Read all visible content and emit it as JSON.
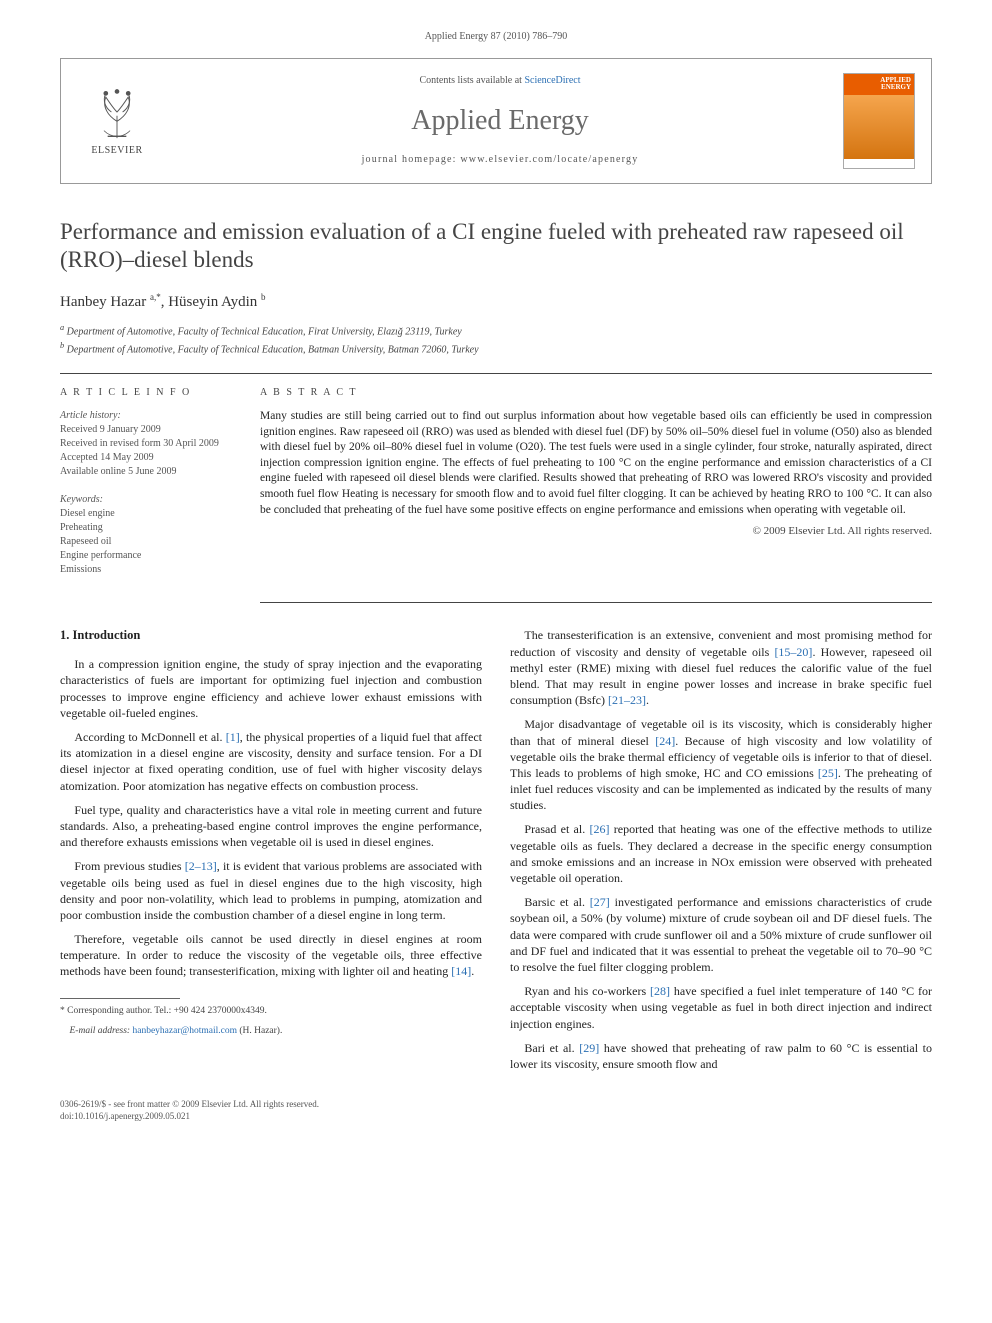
{
  "running_header": "Applied Energy 87 (2010) 786–790",
  "header_box": {
    "contents_line_prefix": "Contents lists available at ",
    "contents_line_link": "ScienceDirect",
    "journal_name": "Applied Energy",
    "homepage_line": "journal homepage: www.elsevier.com/locate/apenergy",
    "elsevier_label": "ELSEVIER",
    "cover_label_line1": "APPLIED",
    "cover_label_line2": "ENERGY"
  },
  "title": "Performance and emission evaluation of a CI engine fueled with preheated raw rapeseed oil (RRO)–diesel blends",
  "authors_html": "Hanbey Hazar <sup>a,*</sup>, Hüseyin Aydin <sup>b</sup>",
  "affiliations": [
    "a Department of Automotive, Faculty of Technical Education, Firat University, Elazığ 23119, Turkey",
    "b Department of Automotive, Faculty of Technical Education, Batman University, Batman 72060, Turkey"
  ],
  "article_info": {
    "header": "A R T I C L E   I N F O",
    "history_label": "Article history:",
    "history": [
      "Received 9 January 2009",
      "Received in revised form 30 April 2009",
      "Accepted 14 May 2009",
      "Available online 5 June 2009"
    ],
    "keywords_label": "Keywords:",
    "keywords": [
      "Diesel engine",
      "Preheating",
      "Rapeseed oil",
      "Engine performance",
      "Emissions"
    ]
  },
  "abstract": {
    "header": "A B S T R A C T",
    "text": "Many studies are still being carried out to find out surplus information about how vegetable based oils can efficiently be used in compression ignition engines. Raw rapeseed oil (RRO) was used as blended with diesel fuel (DF) by 50% oil–50% diesel fuel in volume (O50) also as blended with diesel fuel by 20% oil–80% diesel fuel in volume (O20). The test fuels were used in a single cylinder, four stroke, naturally aspirated, direct injection compression ignition engine. The effects of fuel preheating to 100 °C on the engine performance and emission characteristics of a CI engine fueled with rapeseed oil diesel blends were clarified. Results showed that preheating of RRO was lowered RRO's viscosity and provided smooth fuel flow Heating is necessary for smooth flow and to avoid fuel filter clogging. It can be achieved by heating RRO to 100 °C. It can also be concluded that preheating of the fuel have some positive effects on engine performance and emissions when operating with vegetable oil.",
    "copyright": "© 2009 Elsevier Ltd. All rights reserved."
  },
  "section_heading": "1. Introduction",
  "left_paragraphs": [
    "In a compression ignition engine, the study of spray injection and the evaporating characteristics of fuels are important for optimizing fuel injection and combustion processes to improve engine efficiency and achieve lower exhaust emissions with vegetable oil-fueled engines.",
    "According to McDonnell et al. [1], the physical properties of a liquid fuel that affect its atomization in a diesel engine are viscosity, density and surface tension. For a DI diesel injector at fixed operating condition, use of fuel with higher viscosity delays atomization. Poor atomization has negative effects on combustion process.",
    "Fuel type, quality and characteristics have a vital role in meeting current and future standards. Also, a preheating-based engine control improves the engine performance, and therefore exhausts emissions when vegetable oil is used in diesel engines.",
    "From previous studies [2–13], it is evident that various problems are associated with vegetable oils being used as fuel in diesel engines due to the high viscosity, high density and poor non-volatility, which lead to problems in pumping, atomization and poor combustion inside the combustion chamber of a diesel engine in long term.",
    "Therefore, vegetable oils cannot be used directly in diesel engines at room temperature. In order to reduce the viscosity of the vegetable oils, three effective methods have been found; transesterification, mixing with lighter oil and heating [14]."
  ],
  "right_paragraphs": [
    "The transesterification is an extensive, convenient and most promising method for reduction of viscosity and density of vegetable oils [15–20]. However, rapeseed oil methyl ester (RME) mixing with diesel fuel reduces the calorific value of the fuel blend. That may result in engine power losses and increase in brake specific fuel consumption (Bsfc) [21–23].",
    "Major disadvantage of vegetable oil is its viscosity, which is considerably higher than that of mineral diesel [24]. Because of high viscosity and low volatility of vegetable oils the brake thermal efficiency of vegetable oils is inferior to that of diesel. This leads to problems of high smoke, HC and CO emissions [25]. The preheating of inlet fuel reduces viscosity and can be implemented as indicated by the results of many studies.",
    "Prasad et al. [26] reported that heating was one of the effective methods to utilize vegetable oils as fuels. They declared a decrease in the specific energy consumption and smoke emissions and an increase in NOx emission were observed with preheated vegetable oil operation.",
    "Barsic et al. [27] investigated performance and emissions characteristics of crude soybean oil, a 50% (by volume) mixture of crude soybean oil and DF diesel fuels. The data were compared with crude sunflower oil and a 50% mixture of crude sunflower oil and DF fuel and indicated that it was essential to preheat the vegetable oil to 70–90 °C to resolve the fuel filter clogging problem.",
    "Ryan and his co-workers [28] have specified a fuel inlet temperature of 140 °C for acceptable viscosity when using vegetable as fuel in both direct injection and indirect injection engines.",
    "Bari et al. [29] have showed that preheating of raw palm to 60 °C is essential to lower its viscosity, ensure smooth flow and"
  ],
  "footnotes": {
    "corresponding": "* Corresponding author. Tel.: +90 424 2370000x4349.",
    "email_label": "E-mail address:",
    "email": "hanbeyhazar@hotmail.com",
    "email_suffix": "(H. Hazar)."
  },
  "footer": {
    "line1": "0306-2619/$ - see front matter © 2009 Elsevier Ltd. All rights reserved.",
    "line2": "doi:10.1016/j.apenergy.2009.05.021"
  },
  "colors": {
    "link": "#2b6fb3",
    "journal_gray": "#6a6a6a",
    "cover_orange": "#e85d00",
    "rule": "#444444",
    "text": "#222222"
  }
}
